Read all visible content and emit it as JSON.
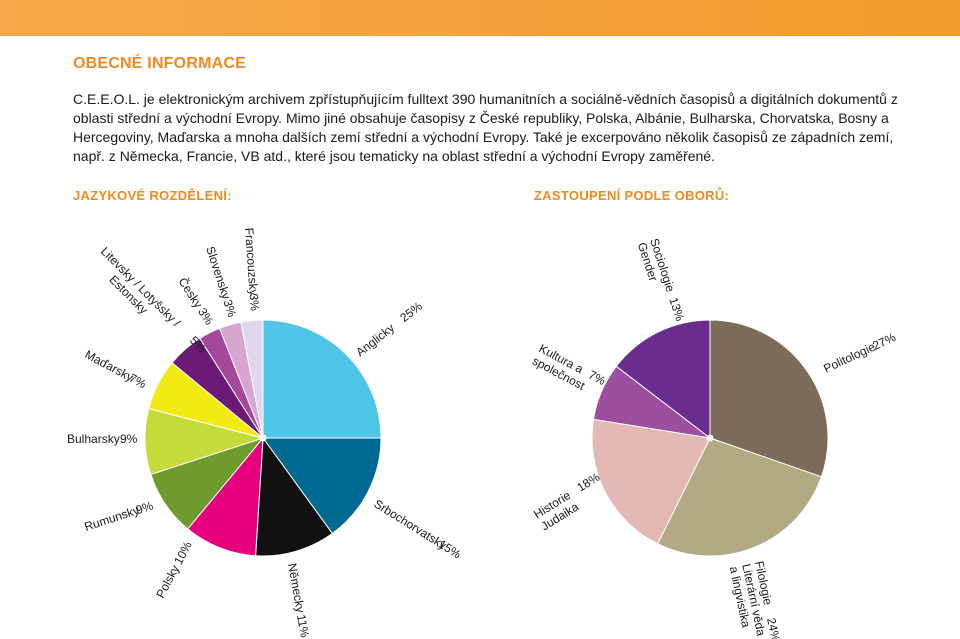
{
  "header": {
    "title": "OBECNÉ INFORMACE",
    "intro": "C.E.E.O.L. je elektronickým archivem zpřístupňujícím fulltext 390 humanitních a sociálně-vědních časopisů a digitálních dokumentů z oblasti střední a východní Evropy. Mimo jiné obsahuje časopisy z České republiky, Polska, Albánie, Bulharska, Chorvatska, Bosny a Hercegoviny, Maďarska a mnoha dalších zemí střední a východní Evropy. Také je excerpováno několik časopisů ze západních zemí, např. z Německa, Francie, VB atd., které jsou tematicky na oblast střední a východní Evropy zaměřené."
  },
  "chart_data": [
    {
      "type": "pie",
      "title": "JAZYKOVÉ ROZDĚLENÍ:",
      "slices": [
        {
          "label": "Anglicky",
          "value": 25,
          "value_label": "25%",
          "color": "#4fc6e8"
        },
        {
          "label": "Srbochorvatsky",
          "value": 15,
          "value_label": "15%",
          "color": "#006a92"
        },
        {
          "label": "Německy",
          "value": 11,
          "value_label": "11%",
          "color": "#111111"
        },
        {
          "label": "Polsky",
          "value": 10,
          "value_label": "10%",
          "color": "#e6007e"
        },
        {
          "label": "Rumunsky",
          "value": 9,
          "value_label": "9%",
          "color": "#6f9a2e"
        },
        {
          "label": "Bulharsky",
          "value": 9,
          "value_label": "9%",
          "color": "#c4db3a"
        },
        {
          "label": "Maďarsky",
          "value": 7,
          "value_label": "7%",
          "color": "#f3ea12"
        },
        {
          "label": "Litevsky / Lotyšsky / Estonsky",
          "value": 5,
          "value_label": "5%",
          "color": "#6b1a78"
        },
        {
          "label": "Česky",
          "value": 3,
          "value_label": "3%",
          "color": "#a5489c"
        },
        {
          "label": "Slovensky",
          "value": 3,
          "value_label": "3%",
          "color": "#d7a5cf"
        },
        {
          "label": "Francouzsky",
          "value": 3,
          "value_label": "3%",
          "color": "#dfd7ec"
        }
      ]
    },
    {
      "type": "pie",
      "title": "ZASTOUPENÍ PODLE OBORŮ:",
      "slices": [
        {
          "label": "Politologie",
          "value": 27,
          "value_label": "27%",
          "color": "#7d6b5a"
        },
        {
          "label": "Filologie Literární věda a lingvistika",
          "value": 24,
          "value_label": "24%",
          "color": "#b3a982"
        },
        {
          "label": "Historie Judaika",
          "value": 18,
          "value_label": "18%",
          "color": "#e3b8b5"
        },
        {
          "label": "Kultura a společnost",
          "value": 7,
          "value_label": "7%",
          "color": "#9c4f9e"
        },
        {
          "label": "Sociologie Gender",
          "value": 13,
          "value_label": "13%",
          "color": "#6a2c8e"
        }
      ]
    }
  ]
}
